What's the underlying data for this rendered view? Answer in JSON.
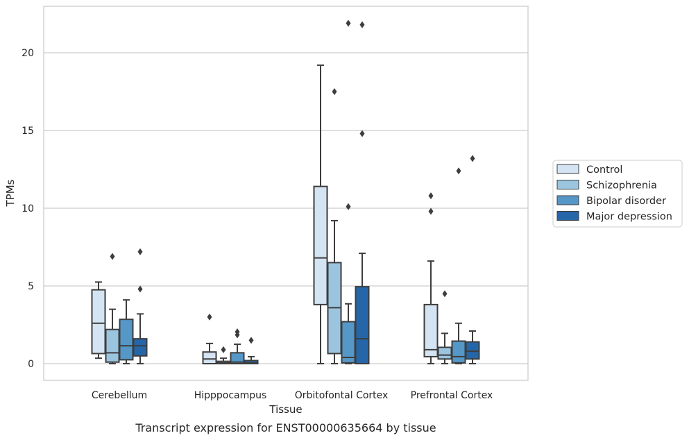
{
  "caption": "Transcript expression for ENST00000635664 by tissue",
  "chart_data": {
    "type": "box",
    "xlabel": "Tissue",
    "ylabel": "TPMs",
    "ylim": [
      -1.05,
      23.0
    ],
    "yticks": [
      0,
      5,
      10,
      15,
      20
    ],
    "grid": "horizontal",
    "legend_position": "right",
    "categories": [
      "Cerebellum",
      "Hipppocampus",
      "Orbitofontal Cortex",
      "Prefrontal Cortex"
    ],
    "series": [
      {
        "name": "Control",
        "color": "#d4e4f3",
        "boxes": [
          {
            "low": 0.35,
            "q1": 0.65,
            "median": 2.6,
            "q3": 4.75,
            "high": 5.25,
            "outliers": []
          },
          {
            "low": 0.0,
            "q1": 0.0,
            "median": 0.3,
            "q3": 0.75,
            "high": 1.3,
            "outliers": [
              3.0
            ]
          },
          {
            "low": 0.0,
            "q1": 3.8,
            "median": 6.8,
            "q3": 11.4,
            "high": 19.2,
            "outliers": []
          },
          {
            "low": 0.0,
            "q1": 0.45,
            "median": 0.9,
            "q3": 3.8,
            "high": 6.6,
            "outliers": [
              9.8,
              10.8
            ]
          }
        ]
      },
      {
        "name": "Schizophrenia",
        "color": "#9bc4de",
        "boxes": [
          {
            "low": 0.0,
            "q1": 0.1,
            "median": 0.7,
            "q3": 2.2,
            "high": 3.5,
            "outliers": [
              6.9
            ]
          },
          {
            "low": 0.0,
            "q1": 0.0,
            "median": 0.05,
            "q3": 0.15,
            "high": 0.35,
            "outliers": [
              0.9
            ]
          },
          {
            "low": 0.0,
            "q1": 0.65,
            "median": 3.6,
            "q3": 6.5,
            "high": 9.2,
            "outliers": [
              17.5
            ]
          },
          {
            "low": 0.0,
            "q1": 0.3,
            "median": 0.55,
            "q3": 1.05,
            "high": 1.95,
            "outliers": [
              4.5
            ]
          }
        ]
      },
      {
        "name": "Bipolar disorder",
        "color": "#5597c7",
        "boxes": [
          {
            "low": 0.0,
            "q1": 0.25,
            "median": 1.15,
            "q3": 2.85,
            "high": 4.1,
            "outliers": []
          },
          {
            "low": 0.0,
            "q1": 0.0,
            "median": 0.1,
            "q3": 0.7,
            "high": 1.25,
            "outliers": [
              1.85,
              2.05
            ]
          },
          {
            "low": 0.0,
            "q1": 0.05,
            "median": 0.4,
            "q3": 2.7,
            "high": 3.85,
            "outliers": [
              10.1,
              21.9
            ]
          },
          {
            "low": 0.0,
            "q1": 0.05,
            "median": 0.45,
            "q3": 1.45,
            "high": 2.6,
            "outliers": [
              12.4
            ]
          }
        ]
      },
      {
        "name": "Major depression",
        "color": "#2566a9",
        "boxes": [
          {
            "low": 0.0,
            "q1": 0.5,
            "median": 1.15,
            "q3": 1.6,
            "high": 3.2,
            "outliers": [
              4.8,
              7.2
            ]
          },
          {
            "low": 0.0,
            "q1": 0.0,
            "median": 0.05,
            "q3": 0.2,
            "high": 0.45,
            "outliers": [
              1.5
            ]
          },
          {
            "low": 0.0,
            "q1": 0.0,
            "median": 1.6,
            "q3": 4.95,
            "high": 7.1,
            "outliers": [
              14.8,
              21.8
            ]
          },
          {
            "low": 0.0,
            "q1": 0.3,
            "median": 0.8,
            "q3": 1.4,
            "high": 2.1,
            "outliers": [
              13.2
            ]
          }
        ]
      }
    ]
  }
}
